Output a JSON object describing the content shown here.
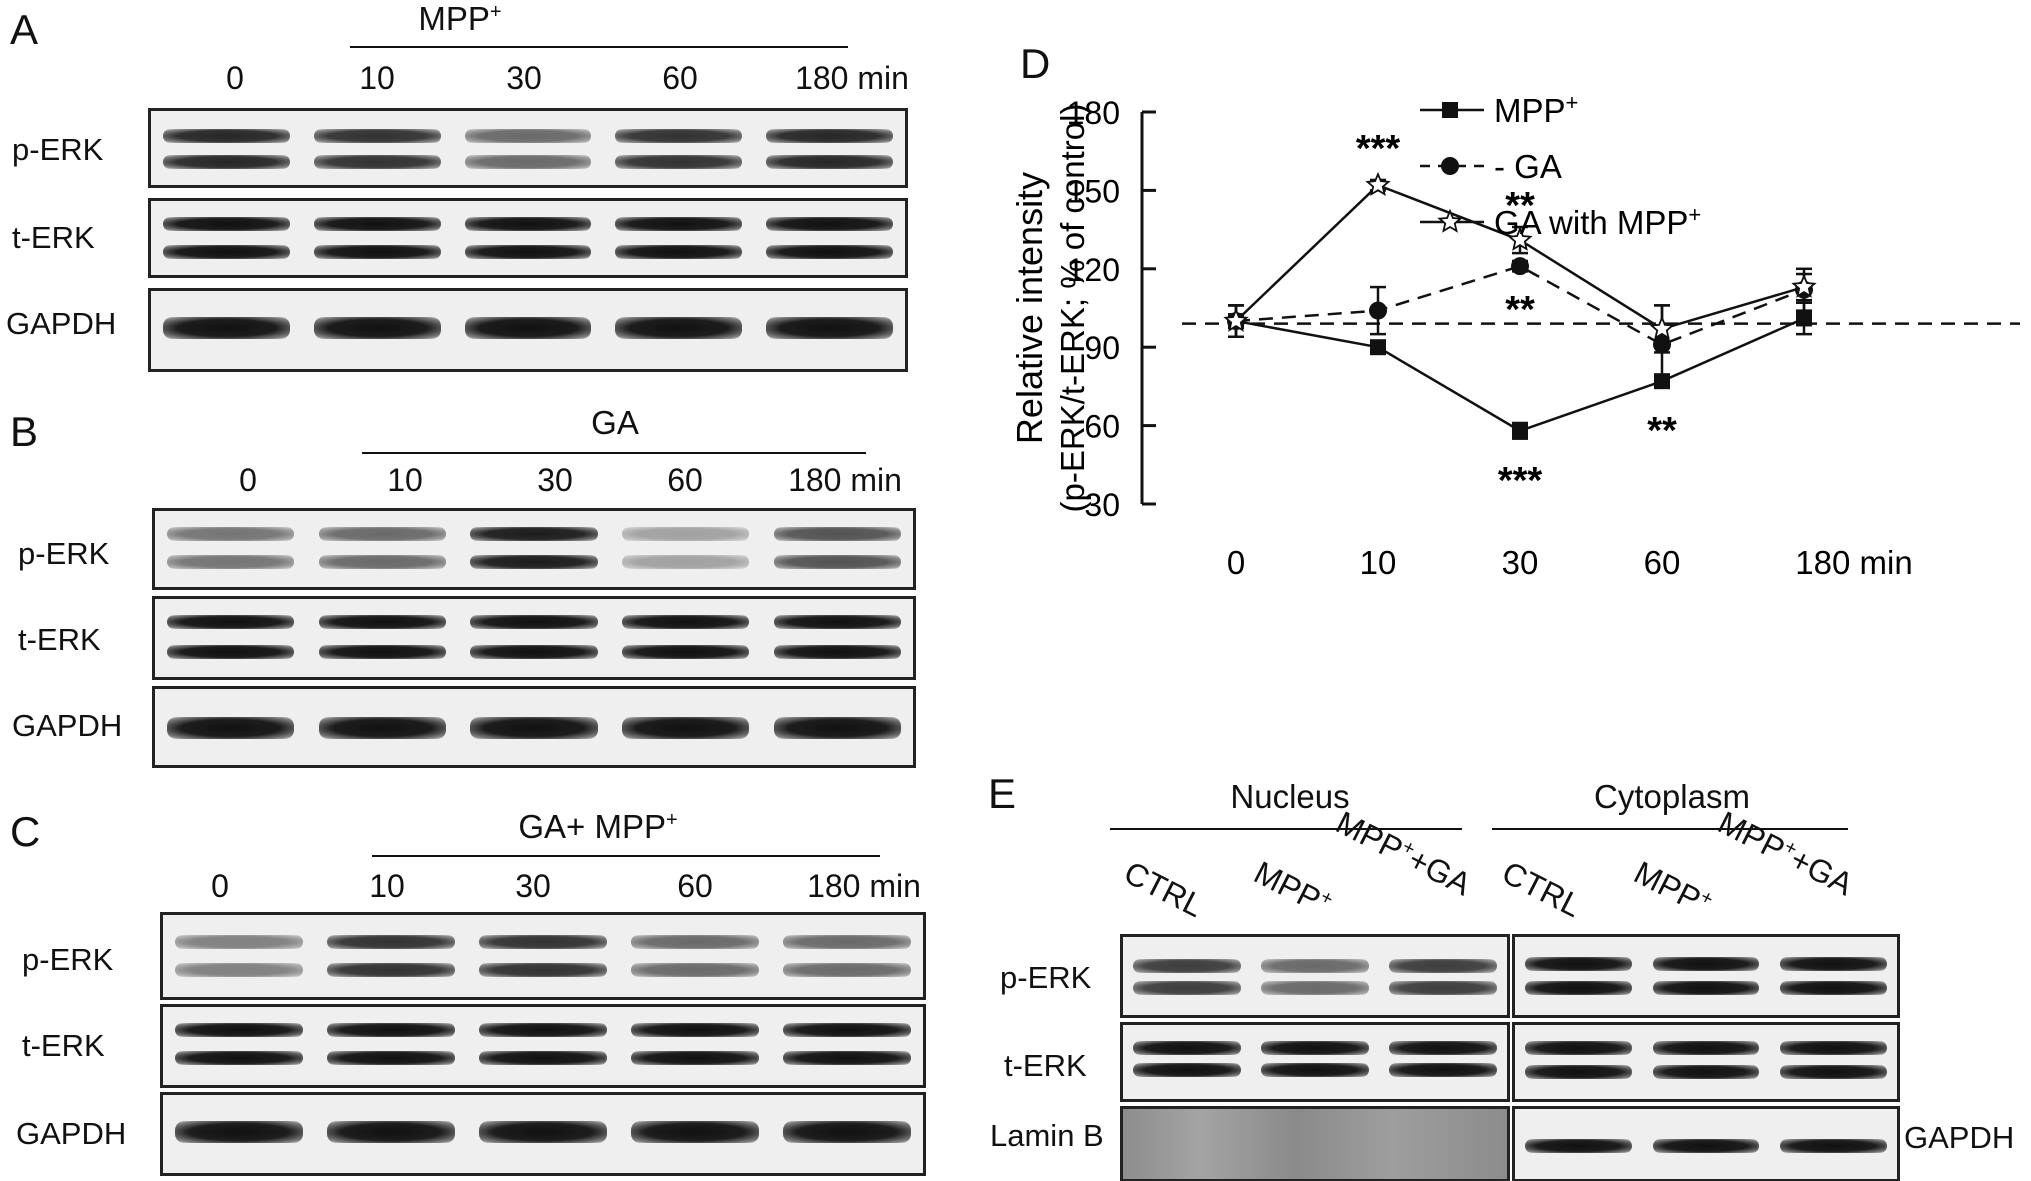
{
  "panelA": {
    "letter": "A",
    "treatment": "MPP",
    "treatment_sup": "+",
    "lanes": [
      "0",
      "10",
      "30",
      "60",
      "180 min"
    ],
    "rows": [
      "p-ERK",
      "t-ERK",
      "GAPDH"
    ],
    "pERK_intensity": [
      0.9,
      0.85,
      0.6,
      0.85,
      0.9
    ]
  },
  "panelB": {
    "letter": "B",
    "treatment": "GA",
    "lanes": [
      "0",
      "10",
      "30",
      "60",
      "180 min"
    ],
    "rows": [
      "p-ERK",
      "t-ERK",
      "GAPDH"
    ],
    "pERK_intensity": [
      0.55,
      0.6,
      0.95,
      0.35,
      0.7
    ]
  },
  "panelC": {
    "letter": "C",
    "treatment": "GA+ MPP",
    "treatment_sup": "+",
    "lanes": [
      "0",
      "10",
      "30",
      "60",
      "180 min"
    ],
    "rows": [
      "p-ERK",
      "t-ERK",
      "GAPDH"
    ],
    "pERK_intensity": [
      0.5,
      0.85,
      0.85,
      0.6,
      0.6
    ]
  },
  "panelE": {
    "letter": "E",
    "groups": [
      "Nucleus",
      "Cytoplasm"
    ],
    "lanes": [
      "CTRL",
      "MPP",
      "MPP",
      "+GA",
      "CTRL",
      "MPP",
      "MPP",
      "+GA"
    ],
    "lane_sup": "+",
    "rows_left": [
      "p-ERK",
      "t-ERK",
      "Lamin B"
    ],
    "row_right": "GAPDH"
  },
  "chart_data": {
    "type": "line",
    "panel_letter": "D",
    "ylabel_line1": "Relative intensity",
    "ylabel_line2": "(p-ERK/t-ERK; % of control)",
    "x": [
      "0",
      "10",
      "30",
      "60",
      "180 min"
    ],
    "ylim": [
      30,
      180
    ],
    "yticks": [
      "30",
      "60",
      "90",
      "120",
      "150",
      "180"
    ],
    "reference_line": 99,
    "legend_position": "top-right",
    "series": [
      {
        "name": "MPP",
        "name_sup": "+",
        "legend_prefix": "",
        "values": [
          100,
          90,
          58,
          77,
          101
        ],
        "errors": [
          6,
          2,
          3,
          2,
          6
        ],
        "marker": "square",
        "line": "solid"
      },
      {
        "name": "GA",
        "legend_prefix": "- ",
        "values": [
          100,
          104,
          121,
          91,
          112
        ],
        "errors": [
          6,
          9,
          2,
          15,
          8
        ],
        "marker": "circle",
        "line": "dashed"
      },
      {
        "name": "GA with MPP",
        "name_sup": "+",
        "legend_prefix": "",
        "values": [
          100,
          152,
          131,
          97,
          113
        ],
        "errors": [
          6,
          2,
          5,
          9,
          5
        ],
        "marker": "star",
        "line": "solid"
      }
    ],
    "annotations": [
      "***",
      "**",
      "**",
      "***",
      "**"
    ]
  }
}
